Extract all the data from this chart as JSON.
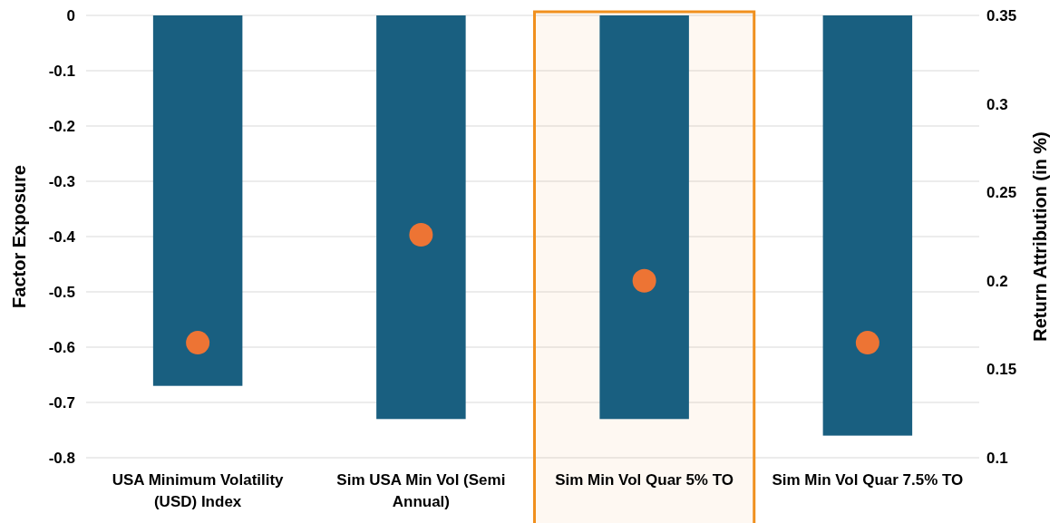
{
  "chart_data": {
    "type": "bar",
    "categories": [
      "USA Minimum Volatility (USD) Index",
      "Sim USA Min Vol (Semi Annual)",
      "Sim Min Vol Quar 5% TO",
      "Sim Min Vol Quar 7.5% TO"
    ],
    "series": [
      {
        "type": "bar",
        "color": "#195f80",
        "values": [
          -0.67,
          -0.73,
          -0.73,
          -0.76
        ]
      },
      {
        "type": "scatter",
        "axis": "y2",
        "color": "#ed7434",
        "x": [
          "USA Minimum Volatility (USD) Index",
          "Sim USA Min Vol (Semi Annual)",
          "Sim Min Vol Quar 5% TO",
          "Sim Min Vol Quar 7.5% TO"
        ],
        "values": [
          0.165,
          0.226,
          0.2,
          0.165
        ]
      }
    ],
    "ylabel": "Factor Exposure",
    "y2label": "Return Attribution (in %)",
    "ylim": [
      -0.8,
      0
    ],
    "yticks": [
      0,
      -0.1,
      -0.2,
      -0.3,
      -0.4,
      -0.5,
      -0.6,
      -0.7,
      -0.8
    ],
    "y2lim": [
      0.1,
      0.35
    ],
    "y2ticks": [
      0.35,
      0.3,
      0.25,
      0.2,
      0.15,
      0.1
    ],
    "grid": "y",
    "marker": "circle",
    "bands": [
      {
        "axis": "x",
        "from": "Sim Min Vol Quar 5% TO",
        "to": "Sim Min Vol Quar 5% TO",
        "color": "#f0901e"
      }
    ]
  }
}
